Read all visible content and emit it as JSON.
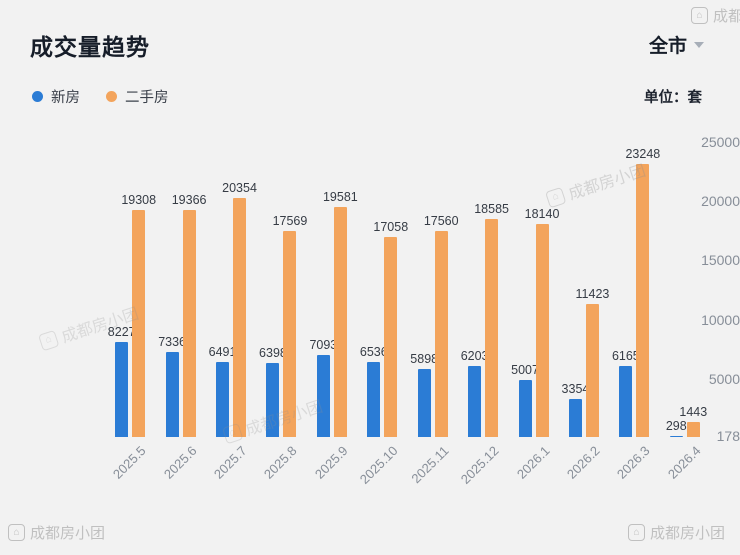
{
  "header": {
    "title": "成交量趋势",
    "region": "全市",
    "unit": "单位：套"
  },
  "legend": [
    {
      "label": "新房",
      "color": "#2b7cd5"
    },
    {
      "label": "二手房",
      "color": "#f3a45c"
    }
  ],
  "watermark": {
    "text": "成都房小团",
    "icon": "⌂"
  },
  "chart_data": {
    "type": "bar",
    "title": "成交量趋势",
    "categories": [
      "2025.5",
      "2025.6",
      "2025.7",
      "2025.8",
      "2025.9",
      "2025.10",
      "2025.11",
      "2025.12",
      "2026.1",
      "2026.2",
      "2026.3",
      "2026.4"
    ],
    "series": [
      {
        "name": "新房",
        "color": "#2b7cd5",
        "values": [
          8227,
          7336,
          6491,
          6398,
          7093,
          6536,
          5898,
          6203,
          5007,
          3354,
          6165,
          298
        ]
      },
      {
        "name": "二手房",
        "color": "#f3a45c",
        "values": [
          19308,
          19366,
          20354,
          17569,
          19581,
          17058,
          17560,
          18585,
          18140,
          11423,
          23248,
          1443
        ]
      }
    ],
    "xlabel": "",
    "ylabel": "套",
    "y_ticks": [
      25000,
      20000,
      15000,
      10000,
      5000,
      178
    ],
    "ylim": [
      178,
      25000
    ],
    "grid": false,
    "legend_position": "top-left"
  }
}
